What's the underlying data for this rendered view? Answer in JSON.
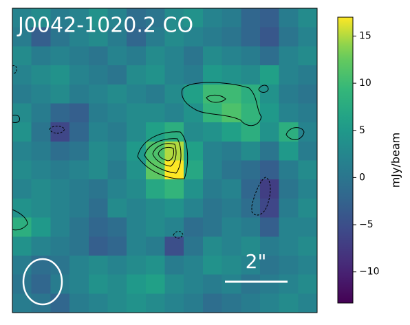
{
  "chart_data": {
    "type": "heatmap",
    "title": "J0042-1020.2 CO",
    "colorbar_label": "mJy/beam",
    "annotation": "2\"",
    "colormap": "viridis",
    "z": [
      [
        2,
        3,
        1,
        2,
        4,
        2,
        -1,
        0,
        3,
        4,
        2,
        1,
        -2,
        -3,
        1,
        3
      ],
      [
        1,
        -3,
        0,
        2,
        3,
        1,
        -2,
        1,
        3,
        2,
        1,
        0,
        -2,
        -4,
        0,
        2
      ],
      [
        3,
        1,
        2,
        1,
        0,
        2,
        1,
        3,
        2,
        0,
        3,
        2,
        1,
        -1,
        2,
        3
      ],
      [
        2,
        3,
        4,
        2,
        1,
        0,
        3,
        4,
        2,
        1,
        5,
        4,
        3,
        6,
        2,
        1
      ],
      [
        1,
        2,
        3,
        1,
        2,
        3,
        2,
        1,
        3,
        6,
        10,
        10,
        8,
        4,
        1,
        0
      ],
      [
        3,
        1,
        -2,
        -3,
        1,
        2,
        3,
        3,
        2,
        4,
        9,
        11,
        9,
        5,
        2,
        1
      ],
      [
        4,
        0,
        -6,
        -2,
        2,
        1,
        3,
        6,
        8,
        3,
        4,
        6,
        8,
        4,
        8,
        2
      ],
      [
        2,
        1,
        -1,
        0,
        3,
        2,
        5,
        11,
        15,
        6,
        2,
        1,
        3,
        0,
        5,
        1
      ],
      [
        3,
        2,
        1,
        2,
        3,
        1,
        4,
        12,
        17,
        7,
        2,
        0,
        -1,
        -3,
        1,
        3
      ],
      [
        2,
        3,
        2,
        1,
        0,
        2,
        3,
        7,
        9,
        4,
        1,
        2,
        -2,
        -7,
        0,
        2
      ],
      [
        4,
        3,
        2,
        1,
        -1,
        3,
        2,
        3,
        4,
        2,
        0,
        1,
        -1,
        -6,
        1,
        3
      ],
      [
        8,
        5,
        2,
        0,
        -2,
        -1,
        2,
        3,
        2,
        -1,
        0,
        2,
        1,
        -3,
        2,
        2
      ],
      [
        4,
        2,
        1,
        0,
        -3,
        -2,
        2,
        1,
        -5,
        0,
        3,
        2,
        3,
        1,
        2,
        3
      ],
      [
        1,
        -1,
        0,
        2,
        3,
        2,
        3,
        4,
        1,
        2,
        4,
        3,
        2,
        0,
        1,
        2
      ],
      [
        0,
        -2,
        1,
        2,
        4,
        3,
        5,
        6,
        3,
        2,
        1,
        2,
        0,
        1,
        2,
        3
      ],
      [
        1,
        0,
        -2,
        1,
        2,
        3,
        4,
        3,
        2,
        1,
        -1,
        0,
        1,
        2,
        3,
        2
      ]
    ],
    "zlim": [
      -13.3,
      17.0
    ],
    "zticks": [
      {
        "value": -10,
        "label": "−10"
      },
      {
        "value": -5,
        "label": "−5"
      },
      0,
      5,
      10,
      15
    ]
  }
}
